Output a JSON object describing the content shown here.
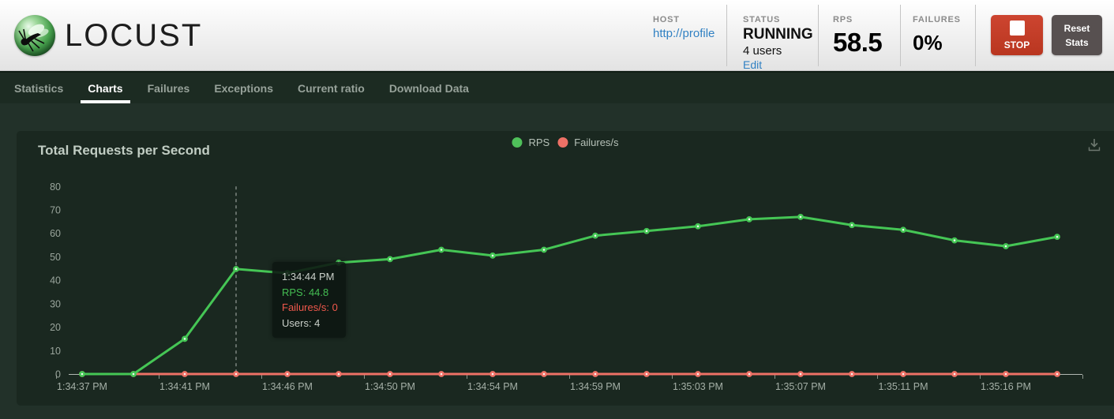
{
  "header": {
    "logo_text": "LOCUST",
    "stats": {
      "host": {
        "label": "HOST",
        "link": "http://profile"
      },
      "status": {
        "label": "STATUS",
        "value": "RUNNING",
        "users": "4 users",
        "edit_link": "Edit"
      },
      "rps": {
        "label": "RPS",
        "value": "58.5"
      },
      "failures": {
        "label": "FAILURES",
        "value": "0%"
      }
    },
    "stop_label": "STOP",
    "reset_label": "Reset Stats"
  },
  "nav": {
    "tabs": [
      {
        "label": "Statistics",
        "active": false
      },
      {
        "label": "Charts",
        "active": true
      },
      {
        "label": "Failures",
        "active": false
      },
      {
        "label": "Exceptions",
        "active": false
      },
      {
        "label": "Current ratio",
        "active": false
      },
      {
        "label": "Download Data",
        "active": false
      }
    ]
  },
  "chart": {
    "title": "Total Requests per Second",
    "legend": [
      {
        "label": "RPS",
        "color": "#4fc15a"
      },
      {
        "label": "Failures/s",
        "color": "#ee7166"
      }
    ],
    "tooltip": {
      "time": "1:34:44 PM",
      "rps": "RPS: 44.8",
      "failures": "Failures/s: 0",
      "users": "Users: 4"
    }
  },
  "colors": {
    "rps_green": "#45c655",
    "failures_red": "#ee7166",
    "link_blue": "#3181c3",
    "stop_red": "#c23d27",
    "panel_bg": "#1a2820",
    "page_bg": "#223129"
  },
  "chart_data": {
    "type": "line",
    "title": "Total Requests per Second",
    "x": [
      "1:34:37 PM",
      "1:34:39 PM",
      "1:34:41 PM",
      "1:34:44 PM",
      "1:34:46 PM",
      "1:34:48 PM",
      "1:34:50 PM",
      "1:34:52 PM",
      "1:34:54 PM",
      "1:34:57 PM",
      "1:34:59 PM",
      "1:35:01 PM",
      "1:35:03 PM",
      "1:35:05 PM",
      "1:35:07 PM",
      "1:35:09 PM",
      "1:35:11 PM",
      "1:35:13 PM",
      "1:35:16 PM",
      "1:35:18 PM"
    ],
    "x_tick_labels": [
      "1:34:37 PM",
      "1:34:41 PM",
      "1:34:46 PM",
      "1:34:50 PM",
      "1:34:54 PM",
      "1:34:59 PM",
      "1:35:03 PM",
      "1:35:07 PM",
      "1:35:11 PM",
      "1:35:16 PM"
    ],
    "series": [
      {
        "name": "RPS",
        "color": "#45c655",
        "values": [
          0,
          0,
          15,
          44.8,
          43,
          47.5,
          49,
          53,
          50.5,
          53,
          59,
          61,
          63,
          66,
          67,
          63.5,
          61.5,
          57,
          54.5,
          58.5
        ]
      },
      {
        "name": "Failures/s",
        "color": "#ee7166",
        "values": [
          0,
          0,
          0,
          0,
          0,
          0,
          0,
          0,
          0,
          0,
          0,
          0,
          0,
          0,
          0,
          0,
          0,
          0,
          0,
          0
        ]
      }
    ],
    "ylim": [
      0,
      80
    ],
    "y_ticks": [
      0,
      10,
      20,
      30,
      40,
      50,
      60,
      70,
      80
    ],
    "highlight_index": 3,
    "grid": false,
    "legend_position": "top-center"
  }
}
